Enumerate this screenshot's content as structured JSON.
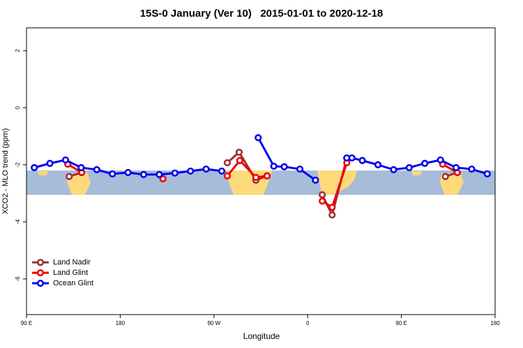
{
  "chart_data": {
    "type": "line",
    "title": "15S-0 January (Ver 10)   2015-01-01 to 2020-12-18",
    "x_label": "Longitude",
    "y_label": "XCO2 - MLO trend (ppm)",
    "xlim": [
      90,
      540
    ],
    "ylim": [
      -7.25,
      2.8
    ],
    "xticks": [
      {
        "value": 90,
        "label": "90 E"
      },
      180,
      {
        "value": 270,
        "label": "90 W"
      },
      {
        "value": 360,
        "label": "0"
      },
      {
        "value": 450,
        "label": "90 E"
      },
      {
        "value": 540,
        "label": "180"
      }
    ],
    "yticks": [
      2,
      0,
      -2,
      -4,
      -6
    ],
    "legend": "bottom-left",
    "series": [
      {
        "name": "Land Nadir",
        "color": "#993333",
        "x": [
          131,
          143,
          null,
          282.8,
          294.2,
          310.3,
          321,
          null,
          374,
          383.5,
          397.6,
          null,
          492.3,
          503.7
        ],
        "values": [
          -2.41,
          -2.27,
          null,
          -1.93,
          -1.56,
          -2.54,
          -2.39,
          null,
          -3.05,
          -3.76,
          -1.76,
          null,
          -2.41,
          -2.27
        ]
      },
      {
        "name": "Land Glint",
        "color": "#ee0000",
        "x": [
          129.6,
          143,
          null,
          221,
          null,
          282.8,
          294.8,
          310.3,
          321,
          null,
          374,
          383.5,
          397.6,
          null,
          489.6,
          503.7
        ],
        "values": [
          -1.98,
          -2.27,
          null,
          -2.49,
          null,
          -2.39,
          -1.85,
          -2.44,
          -2.39,
          null,
          -3.27,
          -3.49,
          -1.93,
          null,
          -1.98,
          -2.27
        ]
      },
      {
        "name": "Ocean Glint",
        "color": "#0000ee",
        "x": [
          97.5,
          112.5,
          127.5,
          142.5,
          157.5,
          172.5,
          187.5,
          202.5,
          217.5,
          232.5,
          247.5,
          262.5,
          277.5,
          null,
          312.5,
          327.5,
          337.5,
          352.5,
          367.5,
          null,
          397.5,
          402.5,
          412.5,
          427.5,
          442.5,
          457.5,
          472.5,
          487.5,
          502.5,
          517.5,
          532.5
        ],
        "values": [
          -2.1,
          -1.95,
          -1.83,
          -2.1,
          -2.17,
          -2.32,
          -2.27,
          -2.34,
          -2.34,
          -2.29,
          -2.22,
          -2.15,
          -2.22,
          null,
          -1.05,
          -2.05,
          -2.07,
          -2.15,
          -2.54,
          null,
          -1.76,
          -1.76,
          -1.85,
          -2.0,
          -2.17,
          -2.1,
          -1.95,
          -1.83,
          -2.1,
          -2.15,
          -2.32
        ]
      }
    ]
  }
}
